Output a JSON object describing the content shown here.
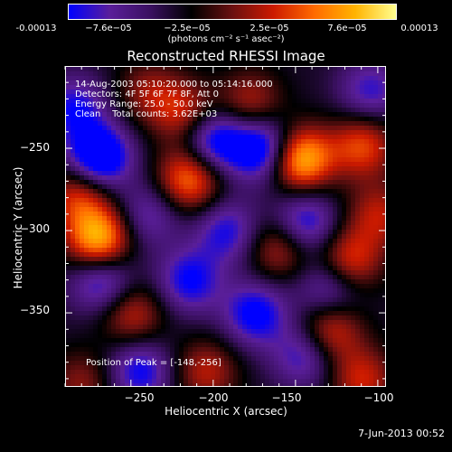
{
  "colorbar": {
    "ticks": [
      "-0.00013",
      "−7.6e−05",
      "−2.5e−05",
      "2.5e−05",
      "7.6e−05",
      "0.00013"
    ],
    "units": "(photons cm⁻² s⁻¹ asec⁻²)",
    "colors": [
      "#0000ff",
      "#5a1e9a",
      "#3a1060",
      "#000000",
      "#6a1010",
      "#cc1a00",
      "#ff6a00",
      "#ffb300",
      "#ffff90"
    ]
  },
  "chart_data": {
    "type": "heatmap",
    "title": "Reconstructed RHESSI Image",
    "xlabel": "Heliocentric X (arcsec)",
    "ylabel": "Heliocentric Y (arcsec)",
    "xlim": [
      -290,
      -95
    ],
    "ylim": [
      -395,
      -200
    ],
    "xticks": [
      "−250",
      "−200",
      "−150",
      "−100"
    ],
    "yticks": [
      "−250",
      "−300",
      "−350"
    ],
    "zlim": [
      -0.00013,
      0.00013
    ],
    "info": [
      "14-Aug-2003 05:10:20.000 to 05:14:16.000",
      "Detectors: 4F 5F 6F 7F 8F, Att 0",
      "Energy Range: 25.0 - 50.0 keV",
      "Clean    Total counts: 3.62E+03"
    ],
    "peak_label": "Position of Peak = [-148,-256]",
    "peak": [
      -148,
      -256
    ],
    "blobs": [
      {
        "x": -148,
        "y": -256,
        "v": 1.0
      },
      {
        "x": -270,
        "y": -305,
        "v": 0.95
      },
      {
        "x": -215,
        "y": -268,
        "v": 0.75
      },
      {
        "x": -110,
        "y": -248,
        "v": 0.6
      },
      {
        "x": -282,
        "y": -278,
        "v": 0.55
      },
      {
        "x": -118,
        "y": -318,
        "v": 0.6
      },
      {
        "x": -130,
        "y": -360,
        "v": 0.6
      },
      {
        "x": -160,
        "y": -310,
        "v": 0.5
      },
      {
        "x": -250,
        "y": -350,
        "v": 0.5
      },
      {
        "x": -218,
        "y": -228,
        "v": 0.5
      },
      {
        "x": -178,
        "y": -222,
        "v": 0.45
      },
      {
        "x": -110,
        "y": -390,
        "v": 0.5
      },
      {
        "x": -205,
        "y": -385,
        "v": 0.45
      },
      {
        "x": -280,
        "y": -392,
        "v": 0.35
      },
      {
        "x": -240,
        "y": -215,
        "v": 0.35
      },
      {
        "x": -100,
        "y": -290,
        "v": 0.45
      },
      {
        "x": -270,
        "y": -255,
        "v": -0.85
      },
      {
        "x": -200,
        "y": -245,
        "v": -0.7
      },
      {
        "x": -170,
        "y": -250,
        "v": -0.8
      },
      {
        "x": -215,
        "y": -330,
        "v": -0.55
      },
      {
        "x": -192,
        "y": -300,
        "v": -0.5
      },
      {
        "x": -175,
        "y": -350,
        "v": -0.6
      },
      {
        "x": -268,
        "y": -330,
        "v": -0.6
      },
      {
        "x": -245,
        "y": -385,
        "v": -0.55
      },
      {
        "x": -130,
        "y": -335,
        "v": -0.5
      },
      {
        "x": -145,
        "y": -375,
        "v": -0.5
      },
      {
        "x": -105,
        "y": -215,
        "v": -0.45
      },
      {
        "x": -145,
        "y": -295,
        "v": -0.6
      },
      {
        "x": -240,
        "y": -290,
        "v": -0.4
      },
      {
        "x": -285,
        "y": -225,
        "v": -0.5
      }
    ]
  },
  "footer": {
    "timestamp": "7-Jun-2013 00:52"
  }
}
